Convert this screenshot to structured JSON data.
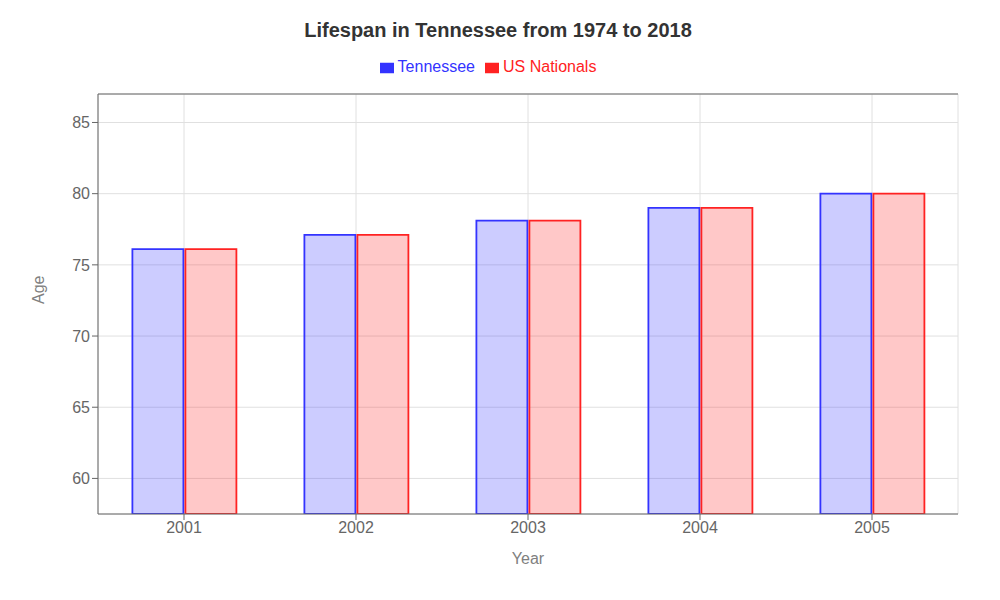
{
  "chart_data": {
    "type": "bar",
    "title": "Lifespan in Tennessee from 1974 to 2018",
    "xlabel": "Year",
    "ylabel": "Age",
    "categories": [
      "2001",
      "2002",
      "2003",
      "2004",
      "2005"
    ],
    "series": [
      {
        "name": "Tennessee",
        "color": "#3333ff",
        "values": [
          76.1,
          77.1,
          78.1,
          79.0,
          80.0
        ]
      },
      {
        "name": "US Nationals",
        "color": "#ff2222",
        "values": [
          76.1,
          77.1,
          78.1,
          79.0,
          80.0
        ]
      }
    ],
    "ylim": [
      57.5,
      87
    ],
    "yticks": [
      60,
      65,
      70,
      75,
      80,
      85
    ],
    "grid": true,
    "legend": "top"
  }
}
